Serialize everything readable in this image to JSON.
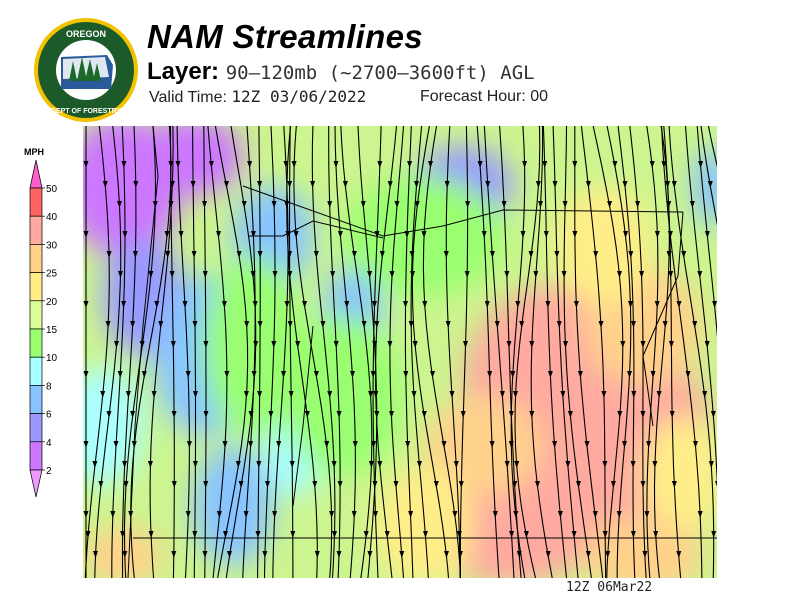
{
  "header": {
    "title": "NAM Streamlines",
    "layer_label": "Layer:",
    "layer_value": "90–120mb (~2700–3600ft) AGL",
    "valid_label": "Valid Time:",
    "valid_value": "12Z 03/06/2022",
    "forecast_label": "Forecast Hour:",
    "forecast_value": "00"
  },
  "logo": {
    "top_text": "OREGON",
    "bottom_text": "DEPARTMENT OF FORESTRY"
  },
  "colorbar": {
    "unit": "MPH",
    "ticks": [
      "50",
      "40",
      "30",
      "25",
      "20",
      "15",
      "10",
      "8",
      "6",
      "4",
      "2"
    ],
    "colors": [
      "#ff5fc8",
      "#ff6464",
      "#ffaaa0",
      "#ffd28c",
      "#ffee88",
      "#ddff99",
      "#99ff70",
      "#aaffff",
      "#88c4ff",
      "#9999ff",
      "#cc77ff",
      "#ee99ff"
    ]
  },
  "map": {
    "type": "wind speed and streamlines",
    "timestamp": "12Z 06Mar22"
  }
}
